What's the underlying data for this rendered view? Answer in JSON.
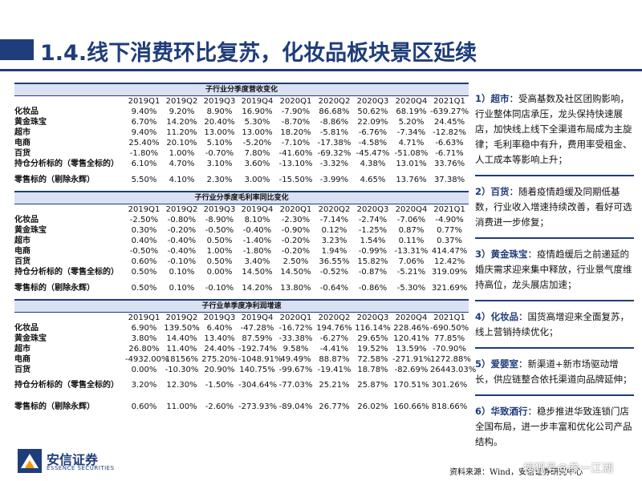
{
  "title": "1.4.线下消费环比复苏，化妆品板块景区延续",
  "columns": [
    "",
    "2019Q1",
    "2019Q2",
    "2019Q3",
    "2019Q4",
    "2020Q1",
    "2020Q2",
    "2020Q3",
    "2020Q4",
    "2021Q1"
  ],
  "tables": [
    {
      "title": "子行业分季度营收变化",
      "rows": [
        {
          "label": "化妆品",
          "values": [
            "9.40%",
            "9.20%",
            "8.90%",
            "16.90%",
            "-7.90%",
            "86.68%",
            "50.62%",
            "68.19%",
            "-639.27%"
          ]
        },
        {
          "label": "黄金珠宝",
          "values": [
            "6.70%",
            "14.20%",
            "20.40%",
            "5.30%",
            "-8.70%",
            "-8.86%",
            "22.09%",
            "5.20%",
            "24.45%"
          ]
        },
        {
          "label": "超市",
          "values": [
            "9.40%",
            "11.20%",
            "13.00%",
            "13.00%",
            "18.20%",
            "-5.81%",
            "-6.76%",
            "-7.34%",
            "-12.82%"
          ]
        },
        {
          "label": "电商",
          "values": [
            "25.40%",
            "20.10%",
            "5.10%",
            "-5.20%",
            "-7.10%",
            "-17.38%",
            "-4.58%",
            "4.71%",
            "-6.63%"
          ]
        },
        {
          "label": "百货",
          "values": [
            "-1.80%",
            "1.00%",
            "-0.70%",
            "7.80%",
            "-41.60%",
            "-69.32%",
            "-45.47%",
            "-51.08%",
            "-6.71%"
          ]
        },
        {
          "label": "持仓分析标的（零售全标的）",
          "values": [
            "6.10%",
            "4.70%",
            "3.10%",
            "3.60%",
            "-13.10%",
            "-3.32%",
            "4.38%",
            "13.01%",
            "33.76%"
          ]
        },
        {
          "label": "零售标的（剔除永辉）",
          "values": [
            "5.50%",
            "4.10%",
            "2.30%",
            "3.00%",
            "-15.50%",
            "-3.99%",
            "4.65%",
            "13.76%",
            "37.38%"
          ]
        }
      ]
    },
    {
      "title": "子行业分季度毛利率同比变化",
      "rows": [
        {
          "label": "化妆品",
          "values": [
            "-2.50%",
            "-0.80%",
            "-8.90%",
            "8.10%",
            "-2.30%",
            "-7.14%",
            "-2.74%",
            "-7.06%",
            "-4.90%"
          ]
        },
        {
          "label": "黄金珠宝",
          "values": [
            "0.30%",
            "-0.20%",
            "-0.50%",
            "-0.40%",
            "-0.90%",
            "0.12%",
            "-1.25%",
            "0.87%",
            "0.77%"
          ]
        },
        {
          "label": "超市",
          "values": [
            "0.40%",
            "-0.40%",
            "0.50%",
            "-1.40%",
            "-0.20%",
            "3.23%",
            "1.54%",
            "0.11%",
            "0.37%"
          ]
        },
        {
          "label": "电商",
          "values": [
            "-0.50%",
            "-0.40%",
            "1.00%",
            "-1.80%",
            "-0.20%",
            "1.94%",
            "-0.99%",
            "-13.31%",
            "414.47%"
          ]
        },
        {
          "label": "百货",
          "values": [
            "0.60%",
            "-0.10%",
            "0.50%",
            "3.40%",
            "2.50%",
            "36.55%",
            "15.82%",
            "7.06%",
            "12.42%"
          ]
        },
        {
          "label": "持仓分析标的（零售全标的）",
          "values": [
            "0.50%",
            "0.10%",
            "0.00%",
            "14.50%",
            "14.50%",
            "-0.52%",
            "-0.87%",
            "-5.21%",
            "319.09%"
          ]
        },
        {
          "label": "零售标的（剔除永辉）",
          "values": [
            "0.50%",
            "0.10%",
            "-0.10%",
            "14.20%",
            "13.80%",
            "-0.64%",
            "-0.86%",
            "-5.30%",
            "321.69%"
          ]
        }
      ]
    },
    {
      "title": "子行业单季度净利润增速",
      "rows": [
        {
          "label": "化妆品",
          "values": [
            "6.90%",
            "139.50%",
            "6.40%",
            "-47.28%",
            "-16.72%",
            "194.76%",
            "116.14%",
            "228.46%",
            "-690.50%"
          ]
        },
        {
          "label": "黄金珠宝",
          "values": [
            "3.80%",
            "14.40%",
            "13.40%",
            "87.59%",
            "-33.38%",
            "-6.27%",
            "29.65%",
            "120.41%",
            "77.85%"
          ]
        },
        {
          "label": "超市",
          "values": [
            "26.80%",
            "11.40%",
            "24.40%",
            "-192.74%",
            "9.58%",
            "-4.41%",
            "19.52%",
            "13.59%",
            "-70.90%"
          ]
        },
        {
          "label": "电商",
          "values": [
            "-4932.00%",
            "18156%",
            "275.20%",
            "-1048.91%",
            "49.49%",
            "88.87%",
            "72.58%",
            "-271.91%",
            "1272.88%"
          ]
        },
        {
          "label": "百货",
          "values": [
            "0.00%",
            "-10.30%",
            "20.90%",
            "140.75%",
            "-99.67%",
            "-19.41%",
            "18.78%",
            "-82.69%",
            "26443.03%"
          ]
        },
        {
          "label": "持仓分析标的（零售全标的）",
          "values": [
            "3.20%",
            "12.30%",
            "-1.50%",
            "-304.64%",
            "-77.03%",
            "25.21%",
            "25.87%",
            "170.51%",
            "301.26%"
          ]
        },
        {
          "label": "零售标的（剔除永辉）",
          "values": [
            "0.60%",
            "11.00%",
            "-2.60%",
            "-273.93%",
            "-89.04%",
            "26.77%",
            "26.02%",
            "160.66%",
            "818.66%"
          ]
        }
      ]
    }
  ],
  "notes": [
    {
      "num": "1）",
      "head": "超市",
      "text": "：受高基数及社区团购影响，行业整体同店承压，龙头保持快速展店，加快线上线下全渠道布局成为主旋律；毛利率稳中有升，费用率受租金、人工成本等影响上升；"
    },
    {
      "num": "2）",
      "head": "百货",
      "text": "：随着疫情趋缓及同期低基数，行业收入增速持续改善，看好可选消费进一步修复；"
    },
    {
      "num": "3）",
      "head": "黄金珠宝",
      "text": "：疫情趋缓后之前递延的婚庆需求迎来集中释放，行业景气度维持高位，龙头展店加速；"
    },
    {
      "num": "4）",
      "head": "化妆品",
      "text": "：国货高增迎来全面复苏，线上营销持续优化；"
    },
    {
      "num": "5）",
      "head": "爱婴室",
      "text": "：新渠道+新市场驱动增长，供应链整合依托渠道向品牌延伸；"
    },
    {
      "num": "6）",
      "head": "华致酒行",
      "text": "：稳步推进华致连锁门店全国布局，进一步丰富和优化公司产品结构。"
    }
  ],
  "logo": {
    "cn": "安信证券",
    "en": "ESSENCE SECURITIES"
  },
  "source": "资料来源：Wind，安信证券研究中心",
  "watermark": "搜狐号@参一江湖",
  "colors": {
    "brand": "#1f3d7a",
    "header_fill": "#d9e1f2",
    "logo_orange": "#f39800"
  }
}
